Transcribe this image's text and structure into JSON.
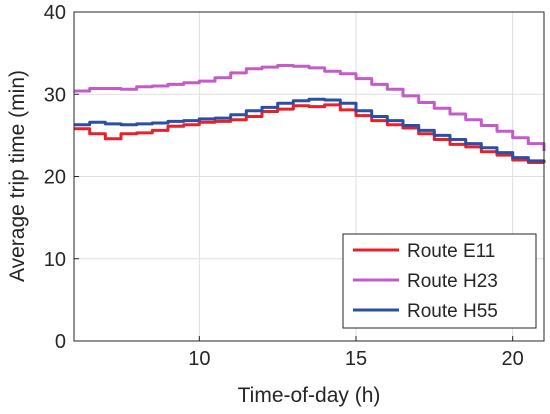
{
  "chart_data": {
    "type": "line",
    "title": "",
    "xlabel": "Time-of-day (h)",
    "ylabel": "Average trip time (min)",
    "xlim": [
      6,
      21
    ],
    "ylim": [
      0,
      40
    ],
    "x_ticks": [
      10,
      15,
      20
    ],
    "y_ticks": [
      0,
      10,
      20,
      30,
      40
    ],
    "grid": true,
    "legend_position": "bottom-right",
    "step": true,
    "x": [
      6.0,
      6.5,
      7.0,
      7.5,
      8.0,
      8.5,
      9.0,
      9.5,
      10.0,
      10.5,
      11.0,
      11.5,
      12.0,
      12.5,
      13.0,
      13.5,
      14.0,
      14.5,
      15.0,
      15.5,
      16.0,
      16.5,
      17.0,
      17.5,
      18.0,
      18.5,
      19.0,
      19.5,
      20.0,
      20.5,
      21.0
    ],
    "series": [
      {
        "name": "Route E11",
        "color": "#e8202a",
        "values": [
          25.8,
          25.2,
          24.6,
          25.2,
          25.3,
          25.6,
          26.1,
          26.3,
          26.6,
          26.7,
          26.9,
          27.3,
          27.9,
          28.2,
          28.6,
          28.5,
          28.7,
          28.1,
          27.4,
          26.8,
          26.3,
          25.9,
          25.2,
          24.5,
          23.9,
          23.6,
          23.0,
          22.6,
          22.0,
          21.7,
          21.6
        ]
      },
      {
        "name": "Route H23",
        "color": "#c35bc9",
        "values": [
          30.4,
          30.7,
          30.7,
          30.6,
          30.9,
          31.0,
          31.2,
          31.4,
          31.6,
          32.0,
          32.6,
          33.1,
          33.3,
          33.5,
          33.4,
          33.2,
          32.8,
          32.5,
          31.9,
          31.2,
          30.6,
          29.8,
          29.0,
          28.3,
          27.6,
          26.9,
          26.2,
          25.5,
          24.7,
          24.0,
          23.1
        ]
      },
      {
        "name": "Route H55",
        "color": "#2d4ea5",
        "values": [
          26.3,
          26.6,
          26.4,
          26.3,
          26.4,
          26.5,
          26.7,
          26.8,
          27.0,
          27.1,
          27.5,
          28.0,
          28.4,
          28.9,
          29.2,
          29.4,
          29.3,
          28.9,
          28.0,
          27.3,
          26.8,
          26.2,
          25.6,
          25.0,
          24.5,
          24.0,
          23.5,
          22.9,
          22.3,
          21.9,
          21.8
        ]
      }
    ]
  }
}
